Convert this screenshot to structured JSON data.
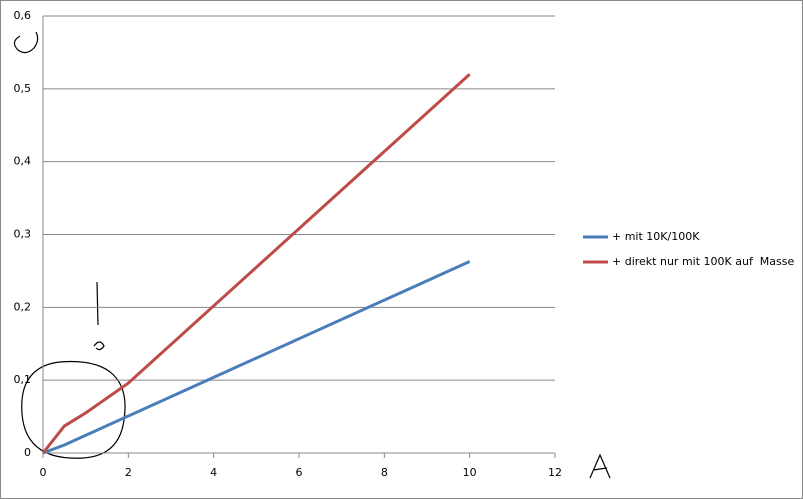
{
  "chart_data": {
    "type": "line",
    "xlim": [
      0,
      12
    ],
    "xticks": [
      0,
      2,
      4,
      6,
      8,
      10,
      12
    ],
    "ylim": [
      0,
      0.6
    ],
    "yticks": [
      0,
      {
        "value": 0.1,
        "label": "0,1"
      },
      {
        "value": 0.2,
        "label": "0,2"
      },
      {
        "value": 0.3,
        "label": "0,3"
      },
      {
        "value": 0.4,
        "label": "0,4"
      },
      {
        "value": 0.5,
        "label": "0,5"
      },
      {
        "value": 0.6,
        "label": "0,6"
      }
    ],
    "grid": true,
    "legend": "right",
    "series": [
      {
        "name": "+ mit 10K/100K",
        "color": "#4a7ebb",
        "x": [
          0,
          0.5,
          10
        ],
        "values": [
          0,
          0.011,
          0.263
        ]
      },
      {
        "name": "+ direkt nur mit 100K auf  Masse",
        "color": "#be4b48",
        "x": [
          0,
          0.5,
          1,
          2,
          10
        ],
        "values": [
          0,
          0.037,
          0.055,
          0.096,
          0.52
        ]
      }
    ]
  }
}
